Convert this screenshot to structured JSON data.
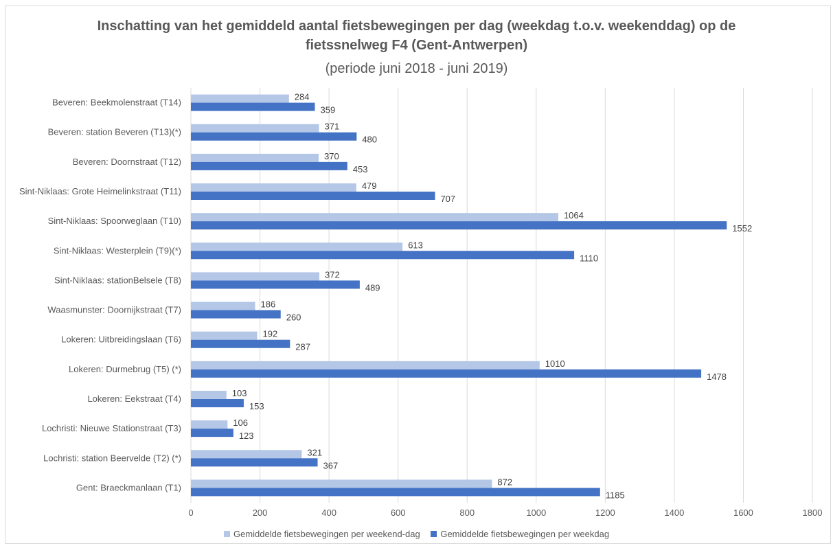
{
  "colors": {
    "weekend": "#b4c7e7",
    "weekday": "#4472c4",
    "grid": "#d9d9d9",
    "text": "#595959"
  },
  "chart_data": {
    "type": "bar",
    "orientation": "horizontal",
    "title_line1": "Inschatting van het gemiddeld aantal fietsbewegingen per dag (weekdag t.o.v. weekenddag) op de",
    "title_line2": "fietssnelweg F4 (Gent-Antwerpen)",
    "subtitle": "(periode juni 2018 - juni 2019)",
    "xlim": [
      0,
      1800
    ],
    "x_ticks": [
      "0",
      "200",
      "400",
      "600",
      "800",
      "1000",
      "1200",
      "1400",
      "1600",
      "1800"
    ],
    "grid": true,
    "legend_position": "bottom",
    "categories": [
      "Beveren: Beekmolenstraat (T14)",
      "Beveren: station Beveren (T13)(*)",
      "Beveren: Doornstraat (T12)",
      "Sint-Niklaas: Grote Heimelinkstraat (T11)",
      "Sint-Niklaas: Spoorweglaan (T10)",
      "Sint-Niklaas: Westerplein (T9)(*)",
      "Sint-Niklaas: stationBelsele (T8)",
      "Waasmunster: Doornijkstraat (T7)",
      "Lokeren: Uitbreidingslaan (T6)",
      "Lokeren: Durmebrug (T5) (*)",
      "Lokeren: Eekstraat (T4)",
      "Lochristi: Nieuwe Stationstraat (T3)",
      "Lochristi: station Beervelde (T2) (*)",
      "Gent: Braeckmanlaan (T1)"
    ],
    "series": [
      {
        "name": "Gemiddelde fietsbewegingen per weekend-dag",
        "color": "#b4c7e7",
        "values": [
          284,
          371,
          370,
          479,
          1064,
          613,
          372,
          186,
          192,
          1010,
          103,
          106,
          321,
          872
        ]
      },
      {
        "name": "Gemiddelde fietsbewegingen per weekdag",
        "color": "#4472c4",
        "values": [
          359,
          480,
          453,
          707,
          1552,
          1110,
          489,
          260,
          287,
          1478,
          153,
          123,
          367,
          1185
        ]
      }
    ]
  }
}
